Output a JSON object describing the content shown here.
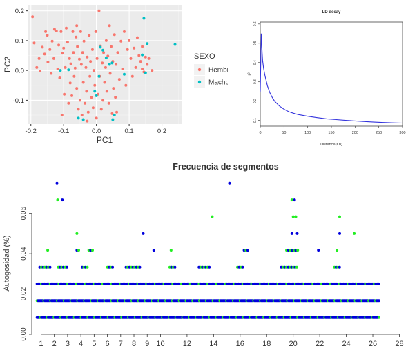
{
  "chart_data": [
    {
      "type": "scatter",
      "xlabel": "PC1",
      "ylabel": "PC2",
      "xlim": [
        -0.21,
        0.26
      ],
      "ylim": [
        -0.18,
        0.22
      ],
      "xticks": [
        "-0.2",
        "-0.1",
        "0.0",
        "0.1",
        "0.2"
      ],
      "yticks": [
        "-0.1",
        "0.0",
        "0.1",
        "0.2"
      ],
      "grid": true,
      "legend": {
        "title": "SEXO",
        "placement": "right"
      },
      "series": [
        {
          "name": "Hembras",
          "color": "#f8766d",
          "points": [
            [
              -0.195,
              0.18
            ],
            [
              -0.19,
              0.092
            ],
            [
              -0.182,
              0.01
            ],
            [
              -0.175,
              0.04
            ],
            [
              -0.172,
              -0.002
            ],
            [
              -0.165,
              0.078
            ],
            [
              -0.158,
              0.055
            ],
            [
              -0.155,
              0.13
            ],
            [
              -0.15,
              0.118
            ],
            [
              -0.148,
              0.028
            ],
            [
              -0.142,
              0.07
            ],
            [
              -0.138,
              -0.01
            ],
            [
              -0.135,
              0.098
            ],
            [
              -0.13,
              0.04
            ],
            [
              -0.128,
              0.138
            ],
            [
              -0.122,
              0.132
            ],
            [
              -0.118,
              0.005
            ],
            [
              -0.115,
              0.085
            ],
            [
              -0.112,
              -0.025
            ],
            [
              -0.108,
              0.13
            ],
            [
              -0.104,
              0.058
            ],
            [
              -0.1,
              0.075
            ],
            [
              -0.098,
              -0.08
            ],
            [
              -0.095,
              0.01
            ],
            [
              -0.092,
              0.142
            ],
            [
              -0.088,
              0.095
            ],
            [
              -0.085,
              -0.11
            ],
            [
              -0.082,
              0.04
            ],
            [
              -0.08,
              -0.042
            ],
            [
              -0.078,
              0.022
            ],
            [
              -0.075,
              -0.085
            ],
            [
              -0.072,
              0.13
            ],
            [
              -0.07,
              0.06
            ],
            [
              -0.068,
              -0.02
            ],
            [
              -0.065,
              0.008
            ],
            [
              -0.062,
              0.112
            ],
            [
              -0.06,
              -0.06
            ],
            [
              -0.058,
              0.08
            ],
            [
              -0.055,
              -0.13
            ],
            [
              -0.052,
              0.038
            ],
            [
              -0.05,
              -0.1
            ],
            [
              -0.048,
              0.13
            ],
            [
              -0.046,
              0.02
            ],
            [
              -0.044,
              -0.15
            ],
            [
              -0.042,
              0.06
            ],
            [
              -0.04,
              -0.04
            ],
            [
              -0.038,
              0.098
            ],
            [
              -0.035,
              -0.11
            ],
            [
              -0.032,
              0.01
            ],
            [
              -0.03,
              -0.07
            ],
            [
              -0.028,
              0.045
            ],
            [
              -0.025,
              -0.14
            ],
            [
              -0.022,
              0.118
            ],
            [
              -0.02,
              -0.02
            ],
            [
              -0.018,
              0.03
            ],
            [
              -0.015,
              -0.09
            ],
            [
              -0.012,
              0.07
            ],
            [
              -0.01,
              -0.125
            ],
            [
              -0.008,
              0.0
            ],
            [
              -0.005,
              -0.05
            ],
            [
              -0.002,
              0.13
            ],
            [
              0.0,
              -0.16
            ],
            [
              0.002,
              0.04
            ],
            [
              0.005,
              -0.08
            ],
            [
              0.008,
              0.2
            ],
            [
              0.01,
              -0.02
            ],
            [
              0.012,
              0.082
            ],
            [
              0.015,
              -0.13
            ],
            [
              0.018,
              0.025
            ],
            [
              0.02,
              -0.1
            ],
            [
              0.022,
              0.06
            ],
            [
              0.025,
              -0.04
            ],
            [
              0.028,
              0.01
            ],
            [
              0.03,
              0.1
            ],
            [
              0.032,
              -0.07
            ],
            [
              0.035,
              0.048
            ],
            [
              0.038,
              -0.11
            ],
            [
              0.04,
              0.15
            ],
            [
              0.042,
              -0.01
            ],
            [
              0.045,
              0.08
            ],
            [
              0.048,
              -0.145
            ],
            [
              0.05,
              0.03
            ],
            [
              0.052,
              -0.06
            ],
            [
              0.055,
              0.12
            ],
            [
              0.058,
              -0.09
            ],
            [
              0.06,
              0.02
            ],
            [
              0.065,
              0.06
            ],
            [
              0.07,
              -0.03
            ],
            [
              0.075,
              0.098
            ],
            [
              0.08,
              0.005
            ],
            [
              0.085,
              0.13
            ],
            [
              0.09,
              -0.05
            ],
            [
              0.095,
              0.07
            ],
            [
              0.1,
              0.1
            ],
            [
              0.105,
              0.04
            ],
            [
              0.11,
              -0.02
            ],
            [
              0.115,
              0.075
            ],
            [
              0.12,
              0.01
            ],
            [
              0.125,
              0.11
            ],
            [
              0.13,
              0.05
            ],
            [
              0.135,
              0.03
            ],
            [
              0.14,
              0.005
            ],
            [
              0.145,
              -0.005
            ],
            [
              0.15,
              0.045
            ],
            [
              0.155,
              0.02
            ],
            [
              0.16,
              0.04
            ],
            [
              0.17,
              0.0
            ],
            [
              -0.105,
              -0.15
            ],
            [
              -0.028,
              -0.17
            ],
            [
              0.062,
              -0.14
            ],
            [
              -0.06,
              0.15
            ],
            [
              0.14,
              0.08
            ]
          ]
        },
        {
          "name": "Machos",
          "color": "#00bfc4",
          "points": [
            [
              -0.11,
              0.0
            ],
            [
              -0.085,
              0.002
            ],
            [
              -0.055,
              -0.16
            ],
            [
              -0.04,
              -0.165
            ],
            [
              -0.005,
              -0.07
            ],
            [
              0.0,
              -0.085
            ],
            [
              0.008,
              -0.02
            ],
            [
              0.012,
              0.078
            ],
            [
              0.02,
              0.068
            ],
            [
              0.03,
              0.042
            ],
            [
              0.04,
              0.02
            ],
            [
              0.048,
              0.025
            ],
            [
              0.05,
              -0.165
            ],
            [
              0.055,
              -0.15
            ],
            [
              0.085,
              -0.013
            ],
            [
              0.14,
              0.052
            ],
            [
              0.145,
              0.175
            ],
            [
              0.15,
              -0.008
            ],
            [
              0.155,
              0.09
            ],
            [
              0.24,
              0.087
            ]
          ]
        }
      ]
    },
    {
      "type": "line",
      "title": "LD decay",
      "xlabel": "Distance(Kb)",
      "ylabel": "r²",
      "xlim": [
        0,
        300
      ],
      "ylim": [
        0.07,
        0.61
      ],
      "xticks": [
        "0",
        "50",
        "100",
        "150",
        "200",
        "250",
        "300"
      ],
      "yticks": [
        "0.1",
        "0.2",
        "0.3",
        "0.4",
        "0.5",
        "0.6"
      ],
      "color": "#3333dd",
      "x": [
        0,
        1,
        2,
        3,
        4,
        5,
        7,
        10,
        15,
        20,
        25,
        30,
        40,
        50,
        60,
        70,
        80,
        100,
        120,
        140,
        160,
        180,
        200,
        220,
        240,
        260,
        280,
        300
      ],
      "y": [
        0.25,
        0.4,
        0.55,
        0.5,
        0.45,
        0.41,
        0.37,
        0.33,
        0.28,
        0.245,
        0.22,
        0.2,
        0.175,
        0.158,
        0.145,
        0.137,
        0.13,
        0.121,
        0.114,
        0.108,
        0.104,
        0.1,
        0.097,
        0.094,
        0.091,
        0.089,
        0.087,
        0.086
      ]
    },
    {
      "type": "scatter",
      "title": "Frecuencia de segmentos",
      "xlabel": "",
      "ylabel": "Autogosidad (%)",
      "xlim": [
        0.3,
        28.6
      ],
      "ylim": [
        0,
        0.077
      ],
      "xticks": [
        "1",
        "2",
        "3",
        "4",
        "5",
        "6",
        "7",
        "8",
        "9",
        "10",
        "12",
        "14",
        "16",
        "18",
        "20",
        "22",
        "24",
        "26",
        "28"
      ],
      "xtick_values": [
        1,
        2,
        3,
        4,
        5,
        6,
        7,
        8,
        9,
        10,
        12,
        14,
        16,
        18,
        20,
        22,
        24,
        26,
        28
      ],
      "yticks": [
        "0.00",
        "0.02",
        "0.04",
        "0.06"
      ],
      "ytick_values": [
        0,
        0.02,
        0.04,
        0.06
      ],
      "series_colors": [
        "#0000dd",
        "#22ee22"
      ],
      "x_range": [
        0.7,
        26.5
      ],
      "dense_levels": [
        0.0083,
        0.0167,
        0.025
      ],
      "level_033": [
        [
          0.9,
          1.7
        ],
        [
          2.3,
          3.0
        ],
        [
          4.1,
          4.5
        ],
        [
          6.0,
          6.4
        ],
        [
          7.4,
          8.5
        ],
        [
          10.7,
          11.2
        ],
        [
          12.9,
          13.8
        ],
        [
          15.8,
          16.2
        ],
        [
          19.1,
          20.3
        ],
        [
          23.1,
          23.6
        ]
      ],
      "level_042": [
        [
          1.5,
          1.5
        ],
        [
          3.7,
          3.9
        ],
        [
          4.6,
          4.9
        ],
        [
          9.5,
          9.6
        ],
        [
          10.8,
          10.8
        ],
        [
          16.3,
          16.6
        ],
        [
          19.5,
          20.4
        ],
        [
          21.9,
          22.0
        ],
        [
          23.3,
          23.4
        ]
      ],
      "sparse_points": [
        [
          2.2,
          0.075
        ],
        [
          2.25,
          0.0667
        ],
        [
          2.6,
          0.0667
        ],
        [
          3.7,
          0.05
        ],
        [
          8.7,
          0.05
        ],
        [
          13.9,
          0.0583
        ],
        [
          15.2,
          0.075
        ],
        [
          19.9,
          0.0667
        ],
        [
          20.1,
          0.0667
        ],
        [
          20.2,
          0.0583
        ],
        [
          20.3,
          0.05
        ],
        [
          23.5,
          0.0583
        ],
        [
          23.5,
          0.05
        ],
        [
          24.6,
          0.05
        ],
        [
          19.9,
          0.05
        ],
        [
          20.0,
          0.0583
        ]
      ]
    }
  ]
}
